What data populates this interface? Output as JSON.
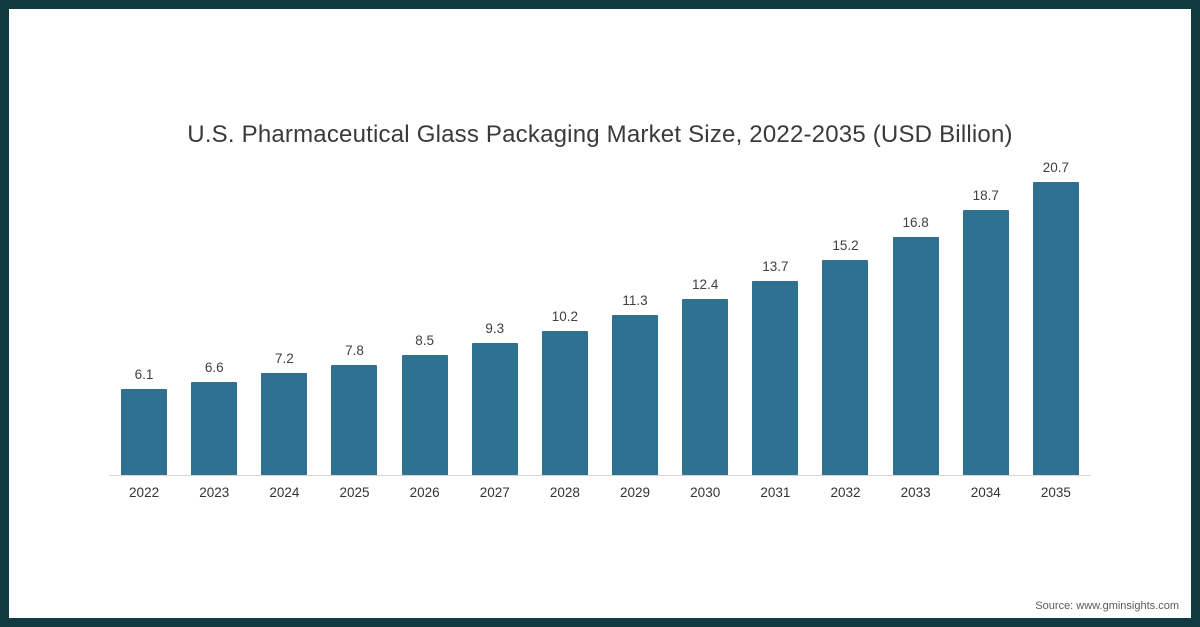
{
  "page": {
    "title": "U.S. Pharmaceutical Glass Packaging Market Size, 2022-2035 (USD Billion)",
    "source": "Source: www.gminsights.com"
  },
  "colors": {
    "bar": "#2e7191",
    "frame_border": "#113a41",
    "axis": "#d6d6d6",
    "title_text": "#3a3a3a",
    "value_label_text": "#404040",
    "year_label_text": "#333333",
    "source_text": "#595959",
    "background": "#ffffff"
  },
  "chart_data": {
    "type": "bar",
    "title": "U.S. Pharmaceutical Glass Packaging Market Size, 2022-2035 (USD Billion)",
    "categories": [
      "2022",
      "2023",
      "2024",
      "2025",
      "2026",
      "2027",
      "2028",
      "2029",
      "2030",
      "2031",
      "2032",
      "2033",
      "2034",
      "2035"
    ],
    "values": [
      6.1,
      6.6,
      7.2,
      7.8,
      8.5,
      9.3,
      10.2,
      11.3,
      12.4,
      13.7,
      15.2,
      16.8,
      18.7,
      20.7
    ],
    "xlabel": "",
    "ylabel": "",
    "ylim": [
      0,
      22
    ],
    "grid": false,
    "legend": false,
    "value_labels_shown": true,
    "bar_color": "#2e7191",
    "source": "Source: www.gminsights.com"
  }
}
